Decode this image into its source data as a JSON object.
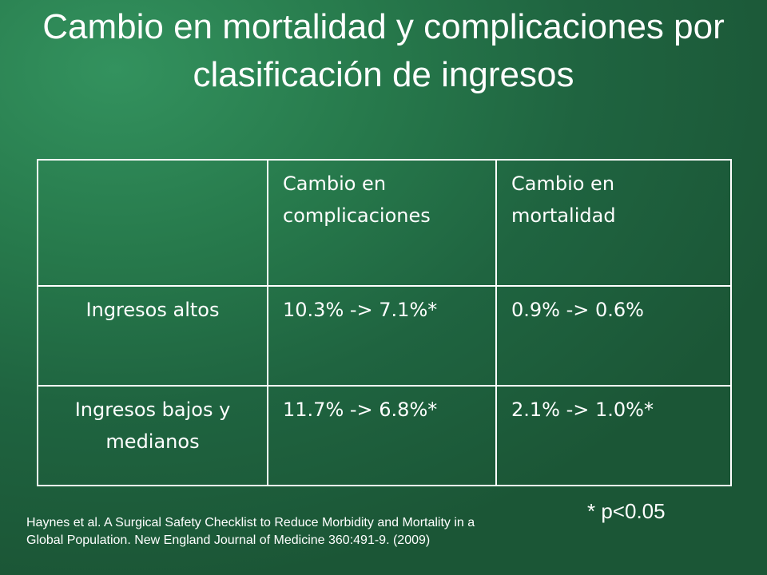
{
  "slide": {
    "title": "Cambio en mortalidad y complicaciones por clasificación de ingresos"
  },
  "table": {
    "header": {
      "empty": "",
      "complications": "Cambio en complicaciones",
      "mortality": "Cambio en mortalidad"
    },
    "rows": [
      {
        "label": "Ingresos altos",
        "complications": "10.3% -> 7.1%*",
        "mortality": "0.9% -> 0.6%"
      },
      {
        "label": "Ingresos bajos y medianos",
        "complications": "11.7% -> 6.8%*",
        "mortality": "2.1% -> 1.0%*"
      }
    ]
  },
  "footnote": {
    "significance": "* p<0.05",
    "citation": "Haynes et al. A Surgical Safety Checklist to Reduce Morbidity and Mortality in a Global Population. New England Journal of Medicine 360:491-9. (2009)"
  }
}
